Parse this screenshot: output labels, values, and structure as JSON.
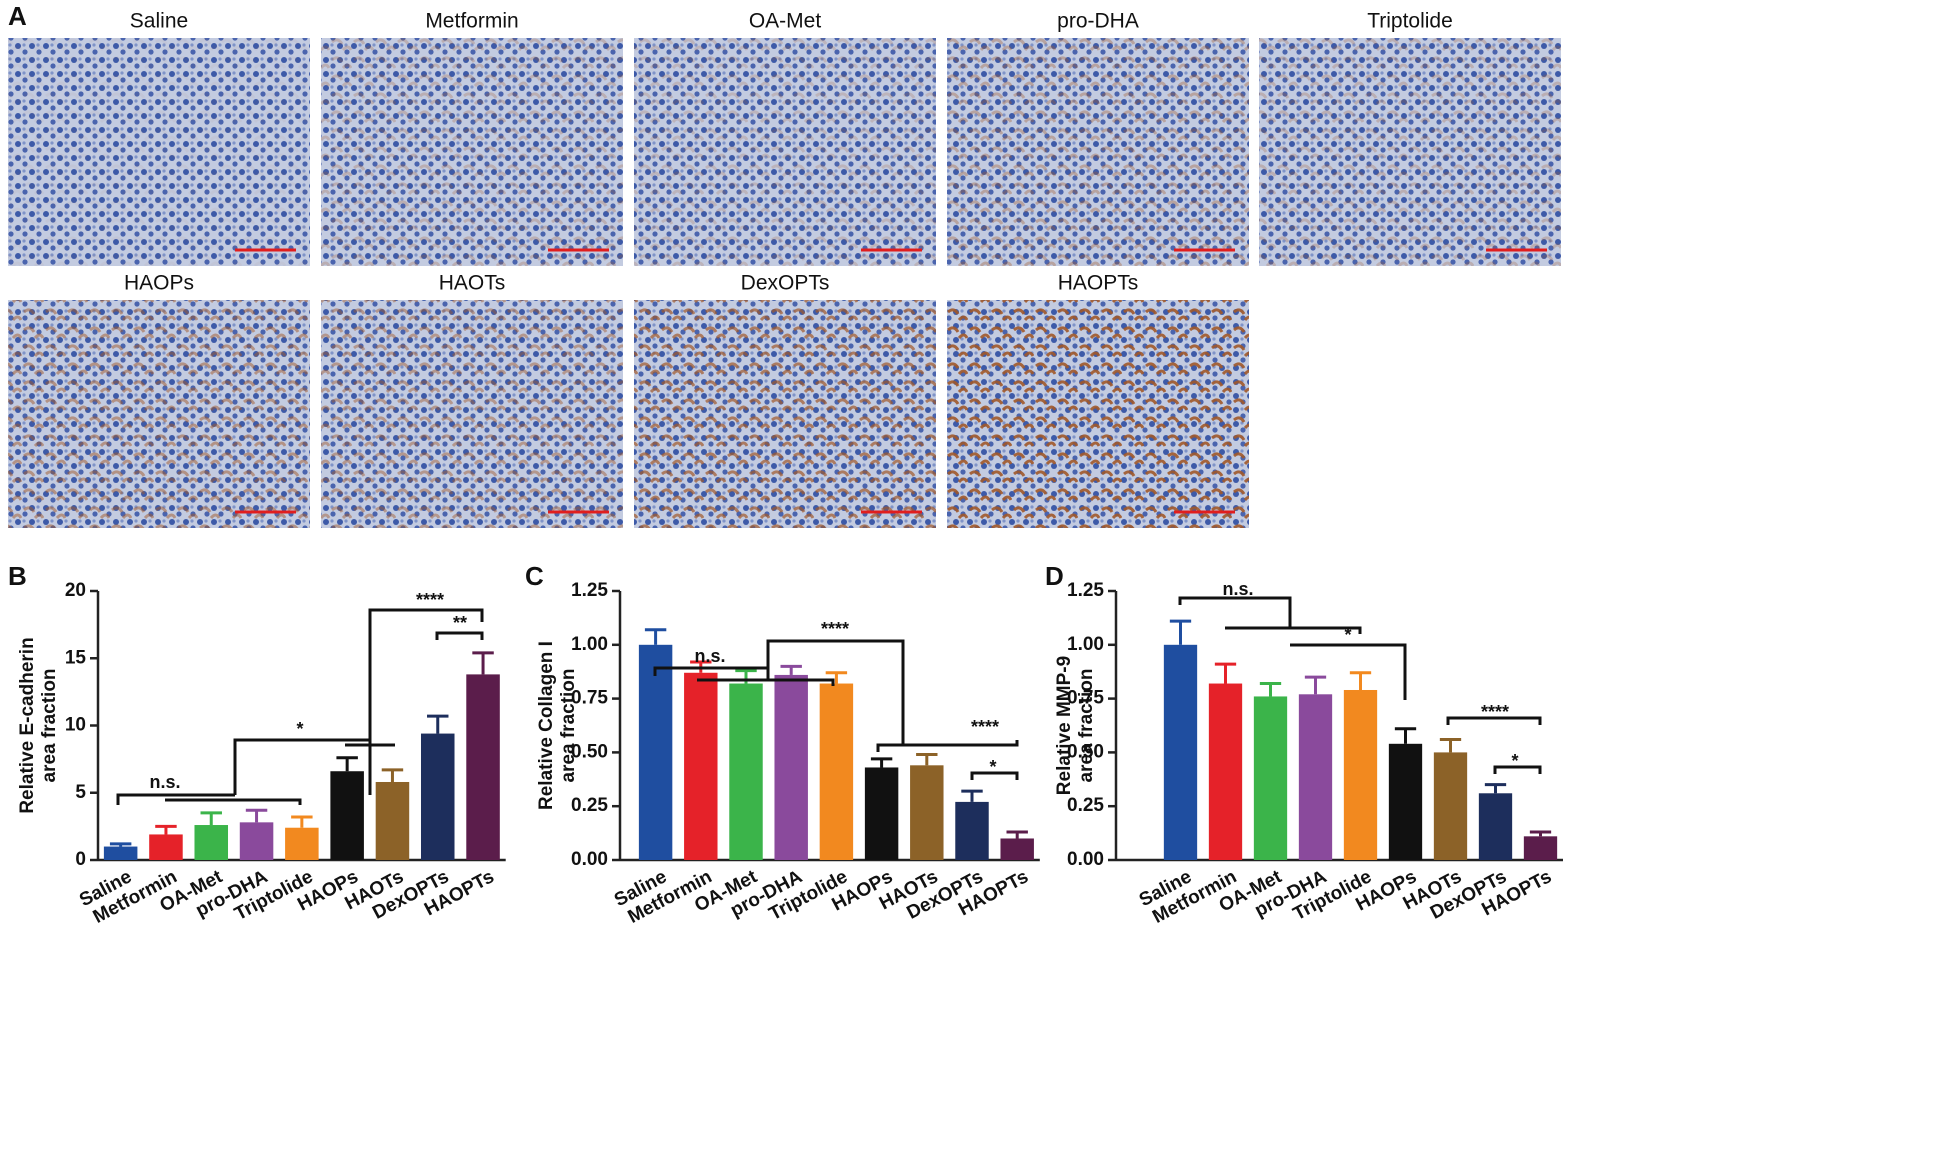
{
  "panel_labels": [
    "A",
    "B",
    "C",
    "D"
  ],
  "micrographs": {
    "titles": [
      "Saline",
      "Metformin",
      "OA-Met",
      "pro-DHA",
      "Triptolide",
      "HAOPs",
      "HAOTs",
      "DexOPTs",
      "HAOPTs"
    ]
  },
  "chart_data": [
    {
      "type": "bar",
      "y_label": [
        "Relative E-cadherin",
        "area fraction"
      ],
      "categories": [
        "Saline",
        "Metformin",
        "OA-Met",
        "pro-DHA",
        "Triptolide",
        "HAOPs",
        "HAOTs",
        "DexOPTs",
        "HAOPTs"
      ],
      "values": [
        1.0,
        1.9,
        2.6,
        2.8,
        2.4,
        6.6,
        5.8,
        9.4,
        13.8
      ],
      "errors": [
        0.2,
        0.6,
        0.9,
        0.9,
        0.8,
        1.0,
        0.9,
        1.3,
        1.6
      ],
      "colors": [
        "#1f4ea0",
        "#e52229",
        "#3bb44a",
        "#8a4a9c",
        "#f2891f",
        "#111111",
        "#8c6228",
        "#1d2e5c",
        "#5b1d4b"
      ],
      "ylim": [
        0,
        20
      ],
      "yticks": [
        0,
        5,
        10,
        15,
        20
      ],
      "annotations": [
        "n.s.",
        "*",
        "****",
        "**"
      ]
    },
    {
      "type": "bar",
      "y_label": [
        "Relative Collagen I",
        "area fraction"
      ],
      "categories": [
        "Saline",
        "Metformin",
        "OA-Met",
        "pro-DHA",
        "Triptolide",
        "HAOPs",
        "HAOTs",
        "DexOPTs",
        "HAOPTs"
      ],
      "values": [
        1.0,
        0.87,
        0.82,
        0.86,
        0.82,
        0.43,
        0.44,
        0.27,
        0.1
      ],
      "errors": [
        0.07,
        0.05,
        0.06,
        0.04,
        0.05,
        0.04,
        0.05,
        0.05,
        0.03
      ],
      "colors": [
        "#1f4ea0",
        "#e52229",
        "#3bb44a",
        "#8a4a9c",
        "#f2891f",
        "#111111",
        "#8c6228",
        "#1d2e5c",
        "#5b1d4b"
      ],
      "ylim": [
        0,
        1.25
      ],
      "yticks": [
        {
          "value": 0,
          "label": "0.00"
        },
        {
          "value": 0.25,
          "label": "0.25"
        },
        {
          "value": 0.5,
          "label": "0.50"
        },
        {
          "value": 0.75,
          "label": "0.75"
        },
        {
          "value": 1,
          "label": "1.00"
        },
        {
          "value": 1.25,
          "label": "1.25"
        }
      ],
      "annotations": [
        "n.s.",
        "****",
        "****",
        "*"
      ]
    },
    {
      "type": "bar",
      "y_label": [
        "Relative MMP-9",
        "area fraction"
      ],
      "categories": [
        "Saline",
        "Metformin",
        "OA-Met",
        "pro-DHA",
        "Triptolide",
        "HAOPs",
        "HAOTs",
        "DexOPTs",
        "HAOPTs"
      ],
      "values": [
        1.0,
        0.82,
        0.76,
        0.77,
        0.79,
        0.54,
        0.5,
        0.31,
        0.11
      ],
      "errors": [
        0.11,
        0.09,
        0.06,
        0.08,
        0.08,
        0.07,
        0.06,
        0.04,
        0.02
      ],
      "colors": [
        "#1f4ea0",
        "#e52229",
        "#3bb44a",
        "#8a4a9c",
        "#f2891f",
        "#111111",
        "#8c6228",
        "#1d2e5c",
        "#5b1d4b"
      ],
      "ylim": [
        0,
        1.25
      ],
      "yticks": [
        {
          "value": 0,
          "label": "0.00"
        },
        {
          "value": 0.25,
          "label": "0.25"
        },
        {
          "value": 0.5,
          "label": "0.50"
        },
        {
          "value": 0.75,
          "label": "0.75"
        },
        {
          "value": 1,
          "label": "1.00"
        },
        {
          "value": 1.25,
          "label": "1.25"
        }
      ],
      "annotations": [
        "n.s.",
        "*",
        "****",
        "*"
      ]
    }
  ]
}
